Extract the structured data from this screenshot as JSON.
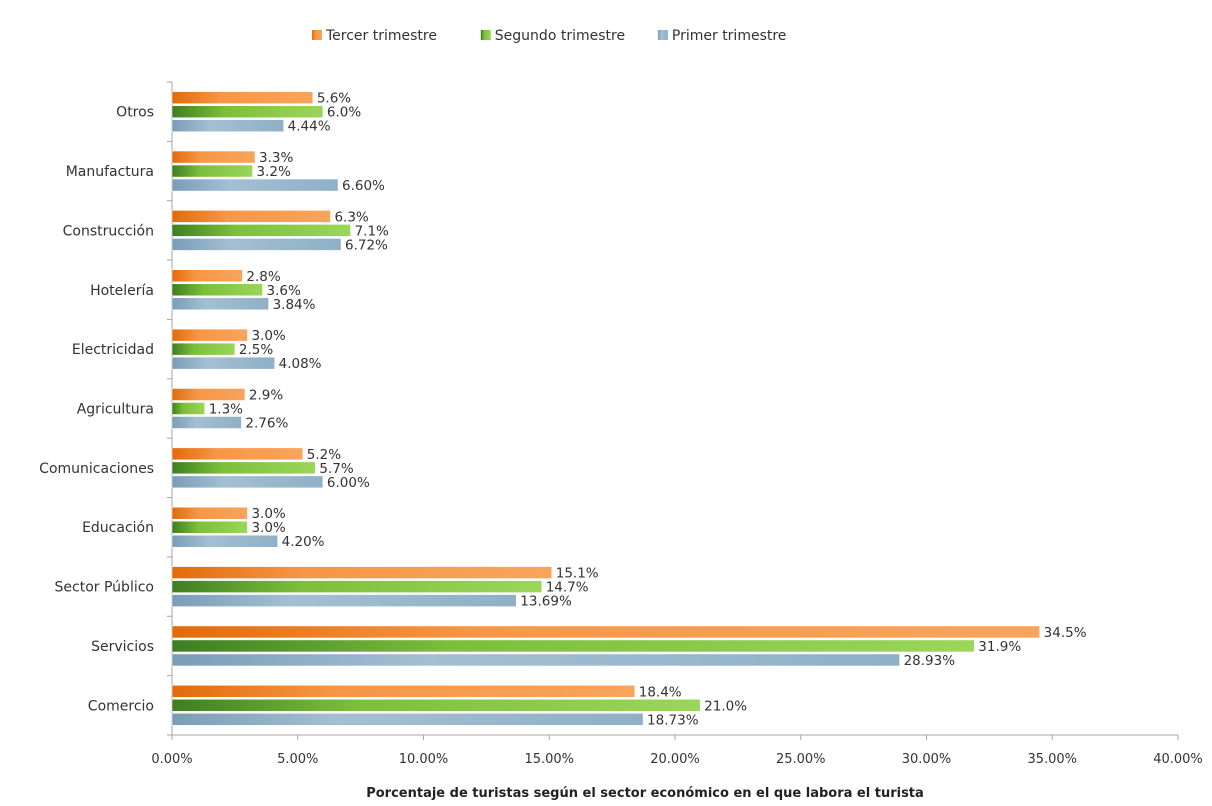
{
  "chart_data": {
    "type": "bar",
    "orientation": "horizontal",
    "title": "",
    "xlabel": "Porcentaje de turistas según el sector económico en el que labora el turista",
    "ylabel": "",
    "xlim": [
      0,
      40
    ],
    "x_ticks": [
      0,
      5,
      10,
      15,
      20,
      25,
      30,
      35,
      40
    ],
    "x_tick_labels": [
      "0.00%",
      "5.00%",
      "10.00%",
      "15.00%",
      "20.00%",
      "25.00%",
      "30.00%",
      "35.00%",
      "40.00%"
    ],
    "grid": false,
    "legend_position": "top",
    "categories": [
      "Otros",
      "Manufactura",
      "Construcción",
      "Hotelería",
      "Electricidad",
      "Agricultura",
      "Comunicaciones",
      "Educación",
      "Sector Público",
      "Servicios",
      "Comercio"
    ],
    "series": [
      {
        "name": "Tercer trimestre",
        "color": "#f79646",
        "values": [
          5.6,
          3.3,
          6.3,
          2.8,
          3.0,
          2.9,
          5.2,
          3.0,
          15.1,
          34.5,
          18.4
        ],
        "labels": [
          "5.6%",
          "3.3%",
          "6.3%",
          "2.8%",
          "3.0%",
          "2.9%",
          "5.2%",
          "3.0%",
          "15.1%",
          "34.5%",
          "18.4%"
        ]
      },
      {
        "name": "Segundo trimestre",
        "color": "#92d050",
        "values": [
          6.0,
          3.2,
          7.1,
          3.6,
          2.5,
          1.3,
          5.7,
          3.0,
          14.7,
          31.9,
          21.0
        ],
        "labels": [
          "6.0%",
          "3.2%",
          "7.1%",
          "3.6%",
          "2.5%",
          "1.3%",
          "5.7%",
          "3.0%",
          "14.7%",
          "31.9%",
          "21.0%"
        ]
      },
      {
        "name": "Primer trimestre",
        "color": "#93b3c9",
        "values": [
          4.44,
          6.6,
          6.72,
          3.84,
          4.08,
          2.76,
          6.0,
          4.2,
          13.69,
          28.93,
          18.73
        ],
        "labels": [
          "4.44%",
          "6.60%",
          "6.72%",
          "3.84%",
          "4.08%",
          "2.76%",
          "6.00%",
          "4.20%",
          "13.69%",
          "28.93%",
          "18.73%"
        ]
      }
    ]
  }
}
